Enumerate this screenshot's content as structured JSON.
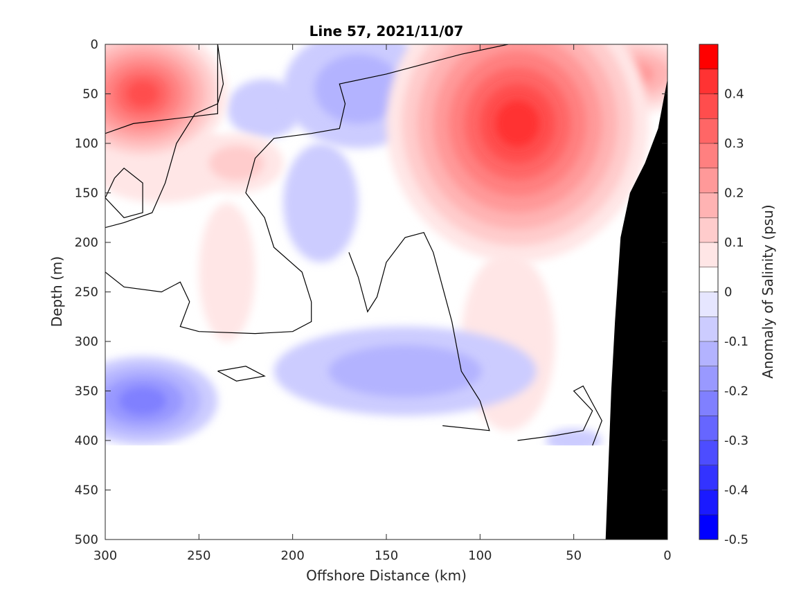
{
  "chart_data": {
    "type": "heatmap",
    "title": "Line 57, 2021/11/07",
    "xlabel": "Offshore Distance (km)",
    "ylabel": "Depth (m)",
    "xlim": [
      300,
      0
    ],
    "ylim": [
      0,
      500
    ],
    "x_reversed": true,
    "y_reversed": true,
    "x_ticks": [
      "300",
      "250",
      "200",
      "150",
      "100",
      "50",
      "0"
    ],
    "x_tick_values": [
      300,
      250,
      200,
      150,
      100,
      50,
      0
    ],
    "y_ticks": [
      "0",
      "50",
      "100",
      "150",
      "200",
      "250",
      "300",
      "350",
      "400",
      "450",
      "500"
    ],
    "y_tick_values": [
      0,
      50,
      100,
      150,
      200,
      250,
      300,
      350,
      400,
      450,
      500
    ],
    "colorbar": {
      "label": "Anomaly of Salinity (psu)",
      "ticks": [
        "0.4",
        "0.3",
        "0.2",
        "0.1",
        "0",
        "-0.1",
        "-0.2",
        "-0.3",
        "-0.4",
        "-0.5"
      ],
      "tick_values": [
        0.4,
        0.3,
        0.2,
        0.1,
        0,
        -0.1,
        -0.2,
        -0.3,
        -0.4,
        -0.5
      ],
      "range": [
        -0.5,
        0.5
      ],
      "step": 0.05,
      "colors": [
        "#0000ff",
        "#1a1aff",
        "#3333ff",
        "#4d4dff",
        "#6666ff",
        "#8080ff",
        "#9999ff",
        "#b3b3ff",
        "#ccccff",
        "#e6e6ff",
        "#ffffff",
        "#ffffff",
        "#ffe6e6",
        "#ffcccc",
        "#ffb3b3",
        "#ff9999",
        "#ff8080",
        "#ff6666",
        "#ff4d4d",
        "#ff3333",
        "#ff0000"
      ]
    },
    "data_extent_depth_m": 405,
    "bathymetry": [
      {
        "x": 0,
        "depth": 35
      },
      {
        "x": 5,
        "depth": 85
      },
      {
        "x": 12,
        "depth": 120
      },
      {
        "x": 20,
        "depth": 150
      },
      {
        "x": 25,
        "depth": 195
      },
      {
        "x": 28,
        "depth": 280
      },
      {
        "x": 30,
        "depth": 350
      },
      {
        "x": 31,
        "depth": 400
      },
      {
        "x": 33,
        "depth": 500
      }
    ],
    "anomaly_features": [
      {
        "x": 280,
        "depth": 50,
        "value": 0.4,
        "rx": 45,
        "ry": 70
      },
      {
        "x": 270,
        "depth": 120,
        "value": 0.1,
        "rx": 40,
        "ry": 40
      },
      {
        "x": 235,
        "depth": 230,
        "value": 0.1,
        "rx": 15,
        "ry": 70
      },
      {
        "x": 230,
        "depth": 120,
        "value": 0.15,
        "rx": 25,
        "ry": 30
      },
      {
        "x": 80,
        "depth": 80,
        "value": 0.45,
        "rx": 70,
        "ry": 140
      },
      {
        "x": 20,
        "depth": 30,
        "value": 0.25,
        "rx": 40,
        "ry": 40
      },
      {
        "x": 85,
        "depth": 300,
        "value": 0.1,
        "rx": 25,
        "ry": 90
      },
      {
        "x": 165,
        "depth": 45,
        "value": -0.15,
        "rx": 40,
        "ry": 60
      },
      {
        "x": 185,
        "depth": 160,
        "value": -0.1,
        "rx": 20,
        "ry": 60
      },
      {
        "x": 215,
        "depth": 65,
        "value": -0.1,
        "rx": 20,
        "ry": 30
      },
      {
        "x": 280,
        "depth": 360,
        "value": -0.25,
        "rx": 40,
        "ry": 45
      },
      {
        "x": 140,
        "depth": 330,
        "value": -0.15,
        "rx": 70,
        "ry": 45
      },
      {
        "x": 50,
        "depth": 400,
        "value": -0.05,
        "rx": 15,
        "ry": 12
      }
    ],
    "zero_contours": [
      [
        [
          240,
          0
        ],
        [
          237,
          40
        ],
        [
          240,
          60
        ],
        [
          252,
          70
        ],
        [
          262,
          100
        ],
        [
          268,
          140
        ],
        [
          275,
          170
        ],
        [
          290,
          180
        ],
        [
          300,
          185
        ]
      ],
      [
        [
          240,
          0
        ],
        [
          240,
          20
        ],
        [
          240,
          70
        ],
        [
          285,
          80
        ],
        [
          300,
          90
        ]
      ],
      [
        [
          300,
          230
        ],
        [
          290,
          245
        ],
        [
          270,
          250
        ],
        [
          260,
          240
        ],
        [
          255,
          260
        ],
        [
          260,
          285
        ],
        [
          250,
          290
        ],
        [
          220,
          292
        ],
        [
          200,
          290
        ],
        [
          190,
          280
        ],
        [
          190,
          260
        ],
        [
          195,
          230
        ],
        [
          210,
          205
        ],
        [
          215,
          175
        ],
        [
          225,
          150
        ],
        [
          220,
          115
        ],
        [
          210,
          95
        ],
        [
          190,
          90
        ],
        [
          175,
          85
        ],
        [
          172,
          60
        ],
        [
          175,
          40
        ],
        [
          150,
          30
        ],
        [
          130,
          20
        ],
        [
          110,
          10
        ],
        [
          85,
          0
        ]
      ],
      [
        [
          170,
          210
        ],
        [
          165,
          235
        ],
        [
          160,
          270
        ],
        [
          155,
          255
        ],
        [
          150,
          220
        ],
        [
          140,
          195
        ],
        [
          130,
          190
        ],
        [
          125,
          210
        ],
        [
          120,
          245
        ],
        [
          115,
          280
        ],
        [
          110,
          330
        ],
        [
          100,
          360
        ],
        [
          95,
          390
        ],
        [
          120,
          385
        ]
      ],
      [
        [
          295,
          135
        ],
        [
          300,
          155
        ],
        [
          290,
          175
        ],
        [
          280,
          170
        ],
        [
          280,
          140
        ],
        [
          290,
          125
        ],
        [
          295,
          135
        ]
      ],
      [
        [
          240,
          330
        ],
        [
          225,
          325
        ],
        [
          215,
          335
        ],
        [
          230,
          340
        ],
        [
          240,
          330
        ]
      ],
      [
        [
          80,
          400
        ],
        [
          60,
          395
        ],
        [
          45,
          390
        ],
        [
          40,
          370
        ],
        [
          50,
          350
        ],
        [
          45,
          345
        ],
        [
          35,
          380
        ],
        [
          40,
          405
        ]
      ]
    ]
  }
}
